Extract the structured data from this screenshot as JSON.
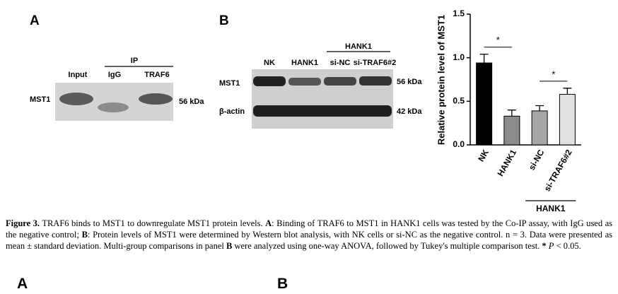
{
  "panel_a": {
    "letter": "A",
    "ip_label": "IP",
    "lanes": [
      "Input",
      "IgG",
      "TRAF6"
    ],
    "row_label": "MST1",
    "size_label": "56 kDa"
  },
  "panel_b": {
    "letter": "B",
    "group_label": "HANK1",
    "lanes": [
      "NK",
      "HANK1",
      "si-NC",
      "si-TRAF6#2"
    ],
    "rows": [
      {
        "label": "MST1",
        "size": "56 kDa"
      },
      {
        "label": "β-actin",
        "size": "42 kDa"
      }
    ]
  },
  "chart_data": {
    "type": "bar",
    "y_label": "Relative protein level of MST1",
    "categories": [
      "NK",
      "HANK1",
      "si-NC",
      "si-TRAF6#2"
    ],
    "values": [
      0.94,
      0.33,
      0.39,
      0.58
    ],
    "errors": [
      0.1,
      0.07,
      0.06,
      0.07
    ],
    "colors": [
      "#000000",
      "#8c8c8c",
      "#a6a6a6",
      "#e0e0e0"
    ],
    "ylim": [
      0,
      1.5
    ],
    "yticks": [
      {
        "value": 0,
        "label": "0.0"
      },
      0.5,
      {
        "value": 1,
        "label": "1.0"
      },
      1.5
    ],
    "annotations": [
      {
        "text": "*",
        "from": "NK",
        "to": "HANK1"
      },
      {
        "text": "*",
        "from": "si-NC",
        "to": "si-TRAF6#2"
      }
    ],
    "groups": [
      {
        "label": "HANK1",
        "from": "si-NC",
        "to": "si-TRAF6#2"
      }
    ]
  },
  "caption": [
    "Figure 3.",
    " TRAF6 binds to MST1 to downregulate MST1 protein levels. ",
    "A",
    ": Binding of TRAF6 to MST1 in HANK1 cells was tested by the Co-IP assay, with IgG used as the negative control; ",
    "B",
    ": Protein levels of MST1 were determined by Western blot analysis, with NK cells or si-NC as the negative control. n = 3. Data were presented as mean ± standard deviation. Multi-group comparisons in panel ",
    "B",
    " were analyzed using one-way ANOVA, followed by Tukey's multiple comparison test. ",
    "*",
    " ",
    "P",
    " < 0.05."
  ],
  "footer": {
    "left": "A",
    "right": "B"
  }
}
